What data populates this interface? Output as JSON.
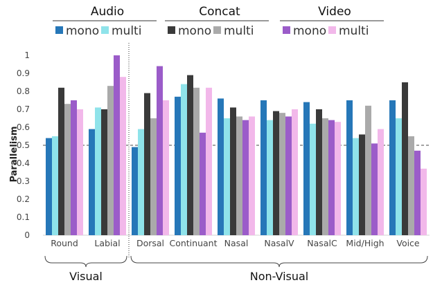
{
  "chart_data": {
    "type": "bar",
    "ylabel": "Parallelism",
    "ylim": [
      0,
      1
    ],
    "yticks": [
      "0",
      "0.1",
      "0.2",
      "0.3",
      "0.4",
      "0.5",
      "0.6",
      "0.7",
      "0.8",
      "0.9",
      "1"
    ],
    "reference_line": 0.5,
    "categories": [
      "Round",
      "Labial",
      "Dorsal",
      "Continuant",
      "Nasal",
      "NasalV",
      "NasalC",
      "Mid/High",
      "Voice"
    ],
    "legend_groups": [
      {
        "title": "Audio",
        "series": [
          0,
          1
        ]
      },
      {
        "title": "Concat",
        "series": [
          2,
          3
        ]
      },
      {
        "title": "Video",
        "series": [
          4,
          5
        ]
      }
    ],
    "series": [
      {
        "name": "mono",
        "group": "Audio",
        "color": "#2677b8",
        "values": [
          0.54,
          0.59,
          0.49,
          0.77,
          0.76,
          0.75,
          0.74,
          0.75,
          0.75
        ]
      },
      {
        "name": "multi",
        "group": "Audio",
        "color": "#8fe3ea",
        "values": [
          0.55,
          0.71,
          0.59,
          0.84,
          0.65,
          0.64,
          0.62,
          0.54,
          0.65
        ]
      },
      {
        "name": "mono",
        "group": "Concat",
        "color": "#3a3a3a",
        "values": [
          0.82,
          0.7,
          0.79,
          0.89,
          0.71,
          0.69,
          0.7,
          0.56,
          0.85
        ]
      },
      {
        "name": "multi",
        "group": "Concat",
        "color": "#aaaaaa",
        "values": [
          0.73,
          0.83,
          0.65,
          0.82,
          0.66,
          0.68,
          0.65,
          0.72,
          0.55
        ]
      },
      {
        "name": "mono",
        "group": "Video",
        "color": "#9b5cc9",
        "values": [
          0.75,
          1.0,
          0.94,
          0.57,
          0.64,
          0.66,
          0.64,
          0.51,
          0.47
        ]
      },
      {
        "name": "multi",
        "group": "Video",
        "color": "#f2b8ea",
        "values": [
          0.7,
          0.88,
          0.75,
          0.82,
          0.66,
          0.7,
          0.63,
          0.59,
          0.37
        ]
      }
    ],
    "category_groups": [
      {
        "label": "Visual",
        "categories": [
          "Round",
          "Labial"
        ]
      },
      {
        "label": "Non-Visual",
        "categories": [
          "Dorsal",
          "Continuant",
          "Nasal",
          "NasalV",
          "NasalC",
          "Mid/High",
          "Voice"
        ]
      }
    ],
    "grid": false,
    "legend_position": "top"
  }
}
